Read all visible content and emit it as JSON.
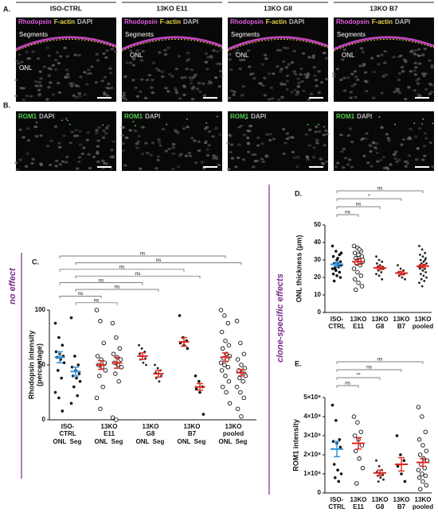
{
  "figure": {
    "panel_a": {
      "label": "A.",
      "columns": [
        "ISO-CTRL",
        "13KO E11",
        "13KO G8",
        "13KO B7"
      ],
      "stain_rhodopsin": "Rhodopsin",
      "stain_factin": "F-actin",
      "stain_dapi": "DAPI",
      "segments": "Segments",
      "onl": "ONL"
    },
    "panel_b": {
      "label": "B.",
      "stain_rom1": "ROM1",
      "stain_dapi": "DAPI"
    },
    "side_labels": {
      "no_effect": "no effect",
      "clone_specific": "clone-specific effects"
    }
  },
  "chart_data": [
    {
      "type": "dot",
      "label": "C.",
      "ylabel": [
        "Rhodopsin intensity",
        "(percentage)"
      ],
      "categories": [
        [
          "ISO-",
          "CTRL"
        ],
        [
          "13KO",
          "E11"
        ],
        [
          "13KO",
          "G8"
        ],
        [
          "13KO",
          "B7"
        ],
        [
          "13KO",
          "pooled"
        ]
      ],
      "subcategories": [
        "ONL",
        "Seg"
      ],
      "ylim": [
        0,
        100
      ],
      "yticks": [
        0,
        50,
        100
      ],
      "groups": [
        {
          "marker": "filled",
          "color": "#2f8fd8",
          "mean": 57,
          "sem": 5,
          "points": [
            88,
            75,
            68,
            62,
            60,
            58,
            57,
            55,
            52,
            45,
            38,
            25,
            20,
            8
          ]
        },
        {
          "marker": "filled",
          "color": "#2f8fd8",
          "mean": 44,
          "sem": 4,
          "points": [
            93,
            58,
            50,
            48,
            45,
            42,
            40,
            38,
            35,
            30,
            22,
            15
          ]
        },
        {
          "marker": "open",
          "color": "#e0261f",
          "mean": 50,
          "sem": 4,
          "points": [
            100,
            90,
            70,
            58,
            55,
            52,
            50,
            48,
            45,
            40,
            30,
            20,
            10
          ]
        },
        {
          "marker": "open",
          "color": "#e0261f",
          "mean": 52,
          "sem": 5,
          "points": [
            88,
            75,
            65,
            60,
            57,
            55,
            52,
            50,
            48,
            42,
            35,
            2,
            0
          ]
        },
        {
          "marker": "small",
          "color": "#e0261f",
          "mean": 58,
          "sem": 3,
          "points": [
            68,
            65,
            62,
            60,
            58,
            56,
            55,
            52,
            50
          ]
        },
        {
          "marker": "small",
          "color": "#e0261f",
          "mean": 42,
          "sem": 3,
          "points": [
            50,
            47,
            45,
            43,
            42,
            40,
            38,
            35
          ]
        },
        {
          "marker": "filled",
          "color": "#e0261f",
          "mean": 71,
          "sem": 4,
          "points": [
            95,
            75,
            72,
            70,
            68,
            65
          ]
        },
        {
          "marker": "filled",
          "color": "#e0261f",
          "mean": 30,
          "sem": 3,
          "points": [
            40,
            35,
            30,
            28,
            25,
            5
          ]
        },
        {
          "marker": "open",
          "color": "#e0261f",
          "mean": 57,
          "sem": 4,
          "points": [
            100,
            95,
            88,
            80,
            72,
            68,
            65,
            60,
            58,
            56,
            55,
            52,
            50,
            48,
            45,
            40,
            35,
            30,
            25,
            15
          ]
        },
        {
          "marker": "open",
          "color": "#e0261f",
          "mean": 43,
          "sem": 3,
          "points": [
            90,
            70,
            60,
            55,
            50,
            47,
            45,
            43,
            40,
            38,
            35,
            30,
            25,
            20,
            10,
            3
          ]
        }
      ],
      "comparisons": [
        {
          "groups": [
            0,
            8
          ],
          "label": "ns"
        },
        {
          "groups": [
            1,
            9
          ],
          "label": "ns"
        },
        {
          "groups": [
            0,
            6
          ],
          "label": "ns"
        },
        {
          "groups": [
            1,
            7
          ],
          "label": "ns"
        },
        {
          "groups": [
            0,
            4
          ],
          "label": "ns"
        },
        {
          "groups": [
            1,
            5
          ],
          "label": "ns"
        },
        {
          "groups": [
            0,
            2
          ],
          "label": "ns"
        },
        {
          "groups": [
            1,
            3
          ],
          "label": "ns"
        }
      ]
    },
    {
      "type": "dot",
      "label": "D.",
      "ylabel": [
        "ONL thickness (μm)"
      ],
      "categories": [
        [
          "ISO-",
          "CTRL"
        ],
        [
          "13KO",
          "E11"
        ],
        [
          "13KO",
          "G8"
        ],
        [
          "13KO",
          "B7"
        ],
        [
          "13KO",
          "pooled"
        ]
      ],
      "ylim": [
        0,
        50
      ],
      "yticks": [
        0,
        10,
        20,
        30,
        40,
        50
      ],
      "groups": [
        {
          "marker": "filled",
          "color": "#2f8fd8",
          "mean": 27.5,
          "sem": 1.2,
          "points": [
            38,
            35,
            33,
            32,
            30,
            29,
            28,
            28,
            27,
            26,
            26,
            25,
            24,
            23,
            22,
            21,
            20,
            18,
            31,
            34,
            25,
            27
          ]
        },
        {
          "marker": "open",
          "color": "#e0261f",
          "mean": 29,
          "sem": 1.5,
          "points": [
            38,
            37,
            35,
            34,
            33,
            32,
            31,
            30,
            29,
            28,
            27,
            25,
            23,
            21,
            19,
            17,
            15,
            13,
            36,
            30
          ]
        },
        {
          "marker": "small",
          "color": "#e0261f",
          "mean": 25.5,
          "sem": 1,
          "points": [
            32,
            30,
            29,
            28,
            27,
            26,
            26,
            25,
            25,
            24,
            23,
            22,
            21,
            19
          ]
        },
        {
          "marker": "small",
          "color": "#e0261f",
          "mean": 22.5,
          "sem": 1,
          "points": [
            27,
            25,
            24,
            23,
            22,
            22,
            21,
            20,
            19
          ]
        },
        {
          "marker": "small",
          "color": "#e0261f",
          "mean": 26.5,
          "sem": 1,
          "points": [
            38,
            36,
            34,
            33,
            32,
            31,
            30,
            29,
            28,
            28,
            27,
            26,
            26,
            25,
            25,
            24,
            23,
            22,
            21,
            20,
            19,
            18,
            17,
            15,
            30,
            27,
            24
          ]
        }
      ],
      "comparisons": [
        {
          "groups": [
            0,
            4
          ],
          "label": "ns"
        },
        {
          "groups": [
            0,
            3
          ],
          "label": "*"
        },
        {
          "groups": [
            0,
            2
          ],
          "label": "ns"
        },
        {
          "groups": [
            0,
            1
          ],
          "label": "ns"
        }
      ]
    },
    {
      "type": "dot",
      "label": "E.",
      "ylabel": [
        "ROM1 intensity"
      ],
      "categories": [
        [
          "ISO-",
          "CTRL"
        ],
        [
          "13KO",
          "E11"
        ],
        [
          "13KO",
          "G8"
        ],
        [
          "13KO",
          "B7"
        ],
        [
          "13KO",
          "pooled"
        ]
      ],
      "ylim": [
        0,
        500000000
      ],
      "yticks": [
        0,
        {
          "value": 100000000,
          "label": "1×10⁸"
        },
        {
          "value": 200000000,
          "label": "2×10⁸"
        },
        {
          "value": 300000000,
          "label": "3×10⁸"
        },
        {
          "value": 400000000,
          "label": "4×10⁸"
        },
        {
          "value": 500000000,
          "label": "5×10⁸"
        }
      ],
      "groups": [
        {
          "marker": "filled",
          "color": "#2f8fd8",
          "mean": 230000000,
          "sem": 40000000,
          "points": [
            460000000,
            380000000,
            280000000,
            270000000,
            260000000,
            240000000,
            150000000,
            120000000,
            100000000,
            80000000,
            60000000
          ]
        },
        {
          "marker": "open",
          "color": "#e0261f",
          "mean": 260000000,
          "sem": 30000000,
          "points": [
            400000000,
            370000000,
            320000000,
            300000000,
            280000000,
            250000000,
            220000000,
            180000000,
            130000000,
            50000000
          ]
        },
        {
          "marker": "small",
          "color": "#e0261f",
          "mean": 105000000,
          "sem": 15000000,
          "points": [
            170000000,
            140000000,
            120000000,
            110000000,
            100000000,
            95000000,
            90000000,
            80000000,
            70000000,
            60000000
          ]
        },
        {
          "marker": "filled",
          "color": "#e0261f",
          "mean": 150000000,
          "sem": 35000000,
          "points": [
            300000000,
            200000000,
            170000000,
            140000000,
            100000000,
            60000000
          ]
        },
        {
          "marker": "open",
          "color": "#e0261f",
          "mean": 160000000,
          "sem": 20000000,
          "points": [
            450000000,
            400000000,
            320000000,
            280000000,
            250000000,
            220000000,
            200000000,
            180000000,
            170000000,
            150000000,
            130000000,
            120000000,
            100000000,
            90000000,
            80000000,
            60000000,
            40000000,
            20000000
          ]
        }
      ],
      "comparisons": [
        {
          "groups": [
            0,
            4
          ],
          "label": "ns"
        },
        {
          "groups": [
            0,
            3
          ],
          "label": "ns"
        },
        {
          "groups": [
            0,
            2
          ],
          "label": "**"
        },
        {
          "groups": [
            0,
            1
          ],
          "label": "ns"
        }
      ]
    }
  ]
}
